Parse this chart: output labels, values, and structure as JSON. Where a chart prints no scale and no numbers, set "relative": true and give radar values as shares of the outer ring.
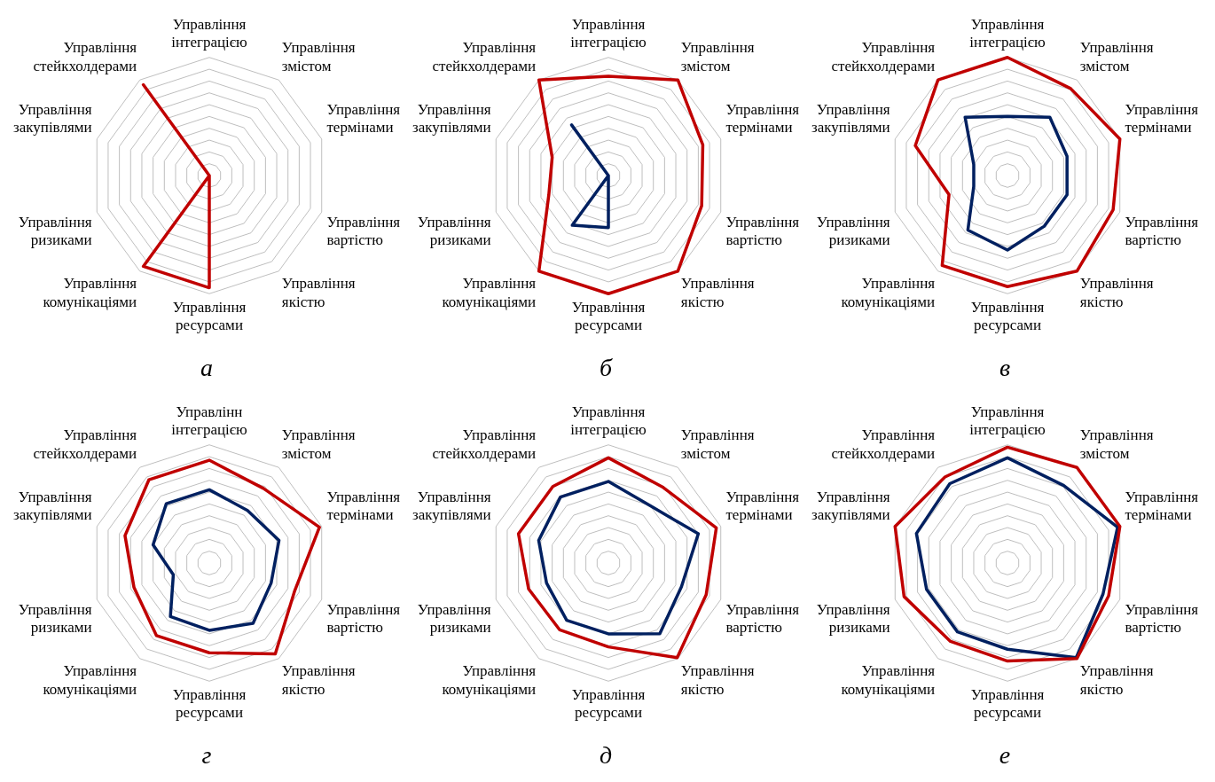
{
  "chart_data": [
    {
      "type": "radar",
      "title": "а",
      "relative": true,
      "grid": true,
      "legend": false,
      "marker": "none",
      "line_style": "solid",
      "categories": [
        "Управління інтеграцією",
        "Управління змістом",
        "Управління термінами",
        "Управління вартістю",
        "Управління якістю",
        "Управління ресурсами",
        "Управління комунікаціями",
        "Управління ризиками",
        "Управління закупівлями",
        "Управління стейкхолдерами"
      ],
      "series": [
        {
          "color": "#c00000",
          "values": [
            0,
            0,
            0,
            0,
            0,
            0.95,
            0.95,
            0,
            0,
            0.95
          ]
        }
      ]
    },
    {
      "type": "radar",
      "title": "б",
      "relative": true,
      "grid": true,
      "legend": false,
      "marker": "none",
      "line_style": "solid",
      "categories": [
        "Управління інтеграцією",
        "Управління змістом",
        "Управління термінами",
        "Управління вартістю",
        "Управління якістю",
        "Управління ресурсами",
        "Управління комунікаціями",
        "Управління ризиками",
        "Управління закупівлями",
        "Управління стейкхолдерами"
      ],
      "series": [
        {
          "color": "#c00000",
          "values": [
            0.84,
            1,
            0.84,
            0.83,
            1,
            1,
            1,
            0.53,
            0.5,
            1
          ]
        },
        {
          "color": "#002060",
          "values": [
            0,
            0,
            0,
            0,
            0,
            0.44,
            0.52,
            0,
            0,
            0.53
          ]
        }
      ]
    },
    {
      "type": "radar",
      "title": "в",
      "relative": true,
      "grid": true,
      "legend": false,
      "marker": "none",
      "line_style": "solid",
      "categories": [
        "Управління інтеграцією",
        "Управління змістом",
        "Управління термінами",
        "Управління вартістю",
        "Управління якістю",
        "Управління ресурсами",
        "Управління комунікаціями",
        "Управління ризиками",
        "Управління закупівлями",
        "Управління стейкхолдерами"
      ],
      "series": [
        {
          "color": "#c00000",
          "values": [
            1,
            0.91,
            1,
            0.94,
            1,
            0.94,
            0.94,
            0.52,
            0.82,
            1
          ]
        },
        {
          "color": "#002060",
          "values": [
            0.5,
            0.61,
            0.53,
            0.53,
            0.53,
            0.63,
            0.57,
            0.3,
            0.3,
            0.61
          ]
        }
      ]
    },
    {
      "type": "radar",
      "title": "г",
      "relative": true,
      "grid": true,
      "legend": false,
      "marker": "none",
      "line_style": "solid",
      "categories": [
        "Управлінн інтеграцією",
        "Управління змістом",
        "Управління термінами",
        "Управління вартістю",
        "Управління якістю",
        "Управління ресурсами",
        "Управління комунікаціями",
        "Управління ризиками",
        "Управління закупівлями",
        "Управління стейкхолдерами"
      ],
      "series": [
        {
          "color": "#c00000",
          "values": [
            0.87,
            0.78,
            0.98,
            0.76,
            0.95,
            0.76,
            0.76,
            0.67,
            0.75,
            0.87
          ]
        },
        {
          "color": "#002060",
          "values": [
            0.62,
            0.55,
            0.62,
            0.55,
            0.63,
            0.57,
            0.56,
            0.32,
            0.5,
            0.62
          ]
        }
      ]
    },
    {
      "type": "radar",
      "title": "д",
      "relative": true,
      "grid": true,
      "legend": false,
      "marker": "none",
      "line_style": "solid",
      "categories": [
        "Управління інтеграцією",
        "Управління змістом",
        "Управління термінами",
        "Управління вартістю",
        "Управління якістю",
        "Управління ресурсами",
        "Управління комунікаціями",
        "Управління ризиками",
        "Управління закупівлями",
        "Управління стейкхолдерами"
      ],
      "series": [
        {
          "color": "#c00000",
          "values": [
            0.89,
            0.79,
            0.96,
            0.87,
            0.99,
            0.71,
            0.7,
            0.71,
            0.8,
            0.8
          ]
        },
        {
          "color": "#002060",
          "values": [
            0.69,
            0.6,
            0.8,
            0.65,
            0.74,
            0.6,
            0.6,
            0.55,
            0.62,
            0.69
          ]
        }
      ]
    },
    {
      "type": "radar",
      "title": "е",
      "relative": true,
      "grid": true,
      "legend": false,
      "marker": "none",
      "line_style": "solid",
      "categories": [
        "Управління інтеграцією",
        "Управління змістом",
        "Управління термінами",
        "Управління вартістю",
        "Управління якістю",
        "Управління ресурсами",
        "Управління комунікаціями",
        "Управління ризиками",
        "Управління закупівлями",
        "Управління стейкхолдерами"
      ],
      "series": [
        {
          "color": "#c00000",
          "values": [
            0.98,
            1,
            1,
            0.9,
            1,
            0.83,
            0.82,
            0.92,
            1,
            0.9
          ]
        },
        {
          "color": "#002060",
          "values": [
            0.89,
            0.81,
            0.98,
            0.85,
            0.99,
            0.73,
            0.72,
            0.72,
            0.81,
            0.83
          ]
        }
      ]
    }
  ]
}
